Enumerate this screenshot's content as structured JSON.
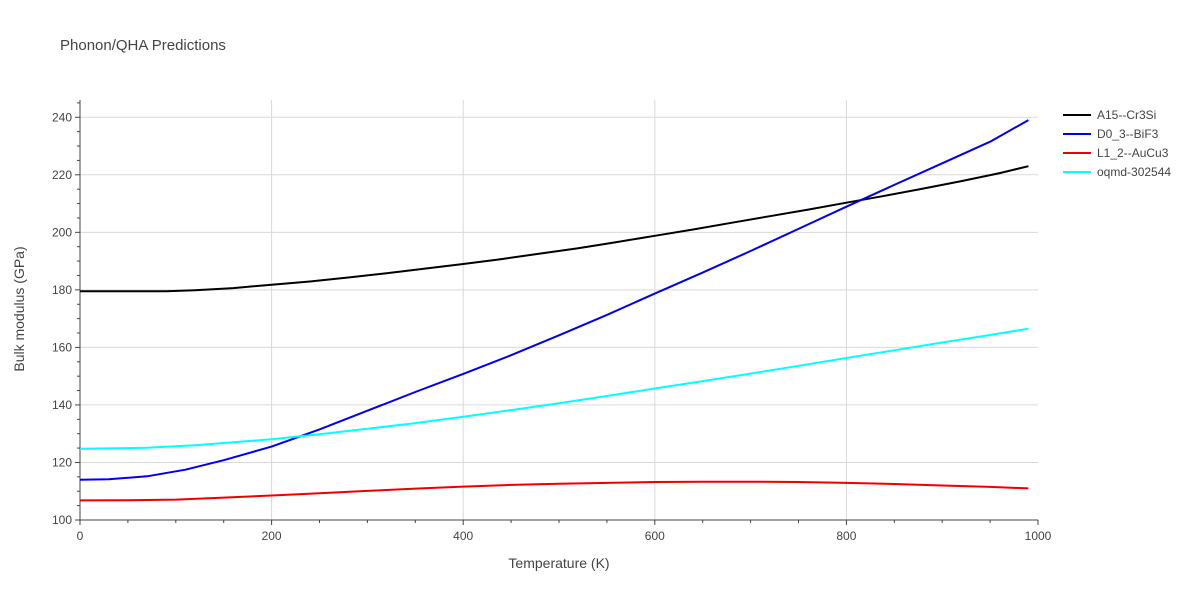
{
  "chart_data": {
    "type": "line",
    "title": "Phonon/QHA Predictions",
    "xlabel": "Temperature (K)",
    "ylabel": "Bulk modulus (GPa)",
    "xlim": [
      0,
      1000
    ],
    "ylim": [
      100,
      246
    ],
    "xticks": [
      0,
      200,
      400,
      600,
      800,
      1000
    ],
    "yticks": [
      100,
      120,
      140,
      160,
      180,
      200,
      220,
      240
    ],
    "grid": true,
    "legend_position": "top-right",
    "series": [
      {
        "name": "A15--Cr3Si",
        "color": "#000000",
        "x": [
          0,
          30,
          60,
          90,
          120,
          160,
          200,
          240,
          280,
          320,
          360,
          400,
          440,
          480,
          520,
          560,
          600,
          640,
          680,
          720,
          760,
          800,
          840,
          880,
          920,
          960,
          990
        ],
        "y": [
          179.5,
          179.5,
          179.5,
          179.5,
          179.9,
          180.6,
          181.8,
          182.9,
          184.3,
          185.8,
          187.4,
          189.0,
          190.7,
          192.6,
          194.5,
          196.6,
          198.8,
          201.0,
          203.3,
          205.6,
          207.9,
          210.3,
          212.7,
          215.2,
          217.8,
          220.6,
          223.0
        ]
      },
      {
        "name": "D0_3--BiF3",
        "color": "#0000ee",
        "x": [
          0,
          30,
          70,
          110,
          150,
          200,
          250,
          300,
          350,
          400,
          450,
          500,
          550,
          600,
          650,
          700,
          750,
          800,
          850,
          900,
          950,
          990
        ],
        "y": [
          114.0,
          114.2,
          115.2,
          117.5,
          120.8,
          125.5,
          131.5,
          138.0,
          144.5,
          150.8,
          157.3,
          164.2,
          171.3,
          178.7,
          186.0,
          193.5,
          201.2,
          208.9,
          216.5,
          224.0,
          231.5,
          239.0
        ]
      },
      {
        "name": "L1_2--AuCu3",
        "color": "#ee0000",
        "x": [
          0,
          50,
          100,
          150,
          200,
          250,
          300,
          350,
          400,
          450,
          500,
          550,
          600,
          650,
          700,
          750,
          800,
          850,
          900,
          950,
          990
        ],
        "y": [
          106.8,
          106.9,
          107.1,
          107.8,
          108.5,
          109.3,
          110.1,
          110.9,
          111.6,
          112.2,
          112.6,
          112.9,
          113.2,
          113.3,
          113.3,
          113.2,
          112.9,
          112.5,
          112.0,
          111.5,
          111.0
        ]
      },
      {
        "name": "oqmd-302544",
        "color": "#00ffff",
        "x": [
          0,
          30,
          70,
          120,
          160,
          200,
          250,
          300,
          350,
          400,
          450,
          500,
          550,
          600,
          650,
          700,
          750,
          800,
          850,
          900,
          950,
          990
        ],
        "y": [
          124.8,
          124.9,
          125.1,
          126.0,
          127.0,
          128.1,
          129.8,
          131.7,
          133.7,
          135.9,
          138.2,
          140.6,
          143.1,
          145.7,
          148.3,
          150.9,
          153.6,
          156.3,
          159.0,
          161.7,
          164.3,
          166.5
        ]
      }
    ]
  }
}
